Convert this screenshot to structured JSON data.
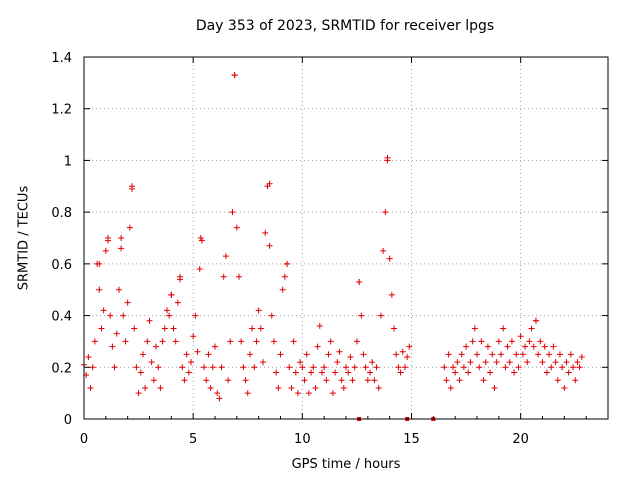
{
  "chart_data": {
    "type": "scatter",
    "title": "Day 353 of 2023, SRMTID for receiver lpgs",
    "xlabel": "GPS time / hours",
    "ylabel": "SRMTID / TECUs",
    "xlim": [
      0,
      24
    ],
    "ylim": [
      0,
      1.4
    ],
    "xticks": [
      0,
      5,
      10,
      15,
      20
    ],
    "yticks": [
      0,
      0.2,
      0.4,
      0.6,
      0.8,
      1,
      1.2,
      1.4
    ],
    "grid": true,
    "marker": "+",
    "color": "#e00000",
    "gaps_hours": [
      [
        14.9,
        15.8
      ],
      [
        15.95,
        16.5
      ]
    ],
    "spikes": [
      {
        "x": 0.7,
        "y": 0.6
      },
      {
        "x": 1.1,
        "y": 0.7
      },
      {
        "x": 1.7,
        "y": 0.7
      },
      {
        "x": 2.2,
        "y": 0.9
      },
      {
        "x": 4.0,
        "y": 0.48
      },
      {
        "x": 4.4,
        "y": 0.55
      },
      {
        "x": 5.35,
        "y": 0.7
      },
      {
        "x": 6.9,
        "y": 1.33
      },
      {
        "x": 8.5,
        "y": 0.91
      },
      {
        "x": 9.3,
        "y": 0.6
      },
      {
        "x": 12.6,
        "y": 0.53
      },
      {
        "x": 13.9,
        "y": 1.01
      },
      {
        "x": 20.7,
        "y": 0.38
      }
    ],
    "zero_points_hours": [
      12.6,
      14.8,
      16.0
    ],
    "points": [
      [
        0.0,
        0.21
      ],
      [
        0.1,
        0.17
      ],
      [
        0.2,
        0.24
      ],
      [
        0.3,
        0.12
      ],
      [
        0.4,
        0.2
      ],
      [
        0.5,
        0.3
      ],
      [
        0.6,
        0.6
      ],
      [
        0.7,
        0.5
      ],
      [
        0.8,
        0.35
      ],
      [
        0.9,
        0.42
      ],
      [
        1.0,
        0.65
      ],
      [
        1.1,
        0.69
      ],
      [
        1.2,
        0.4
      ],
      [
        1.3,
        0.28
      ],
      [
        1.4,
        0.2
      ],
      [
        1.5,
        0.33
      ],
      [
        1.6,
        0.5
      ],
      [
        1.7,
        0.66
      ],
      [
        1.8,
        0.4
      ],
      [
        1.9,
        0.3
      ],
      [
        2.0,
        0.45
      ],
      [
        2.1,
        0.74
      ],
      [
        2.2,
        0.89
      ],
      [
        2.3,
        0.35
      ],
      [
        2.4,
        0.2
      ],
      [
        2.5,
        0.1
      ],
      [
        2.6,
        0.18
      ],
      [
        2.7,
        0.25
      ],
      [
        2.8,
        0.12
      ],
      [
        2.9,
        0.3
      ],
      [
        3.0,
        0.38
      ],
      [
        3.1,
        0.22
      ],
      [
        3.2,
        0.15
      ],
      [
        3.3,
        0.28
      ],
      [
        3.4,
        0.2
      ],
      [
        3.5,
        0.12
      ],
      [
        3.6,
        0.3
      ],
      [
        3.7,
        0.35
      ],
      [
        3.8,
        0.42
      ],
      [
        3.9,
        0.4
      ],
      [
        4.0,
        0.48
      ],
      [
        4.1,
        0.35
      ],
      [
        4.2,
        0.3
      ],
      [
        4.3,
        0.45
      ],
      [
        4.4,
        0.54
      ],
      [
        4.5,
        0.2
      ],
      [
        4.6,
        0.15
      ],
      [
        4.7,
        0.25
      ],
      [
        4.8,
        0.18
      ],
      [
        4.9,
        0.22
      ],
      [
        5.0,
        0.32
      ],
      [
        5.1,
        0.4
      ],
      [
        5.2,
        0.26
      ],
      [
        5.3,
        0.58
      ],
      [
        5.4,
        0.69
      ],
      [
        5.5,
        0.2
      ],
      [
        5.6,
        0.15
      ],
      [
        5.7,
        0.25
      ],
      [
        5.8,
        0.12
      ],
      [
        5.9,
        0.2
      ],
      [
        6.0,
        0.28
      ],
      [
        6.1,
        0.1
      ],
      [
        6.2,
        0.08
      ],
      [
        6.3,
        0.2
      ],
      [
        6.4,
        0.55
      ],
      [
        6.5,
        0.63
      ],
      [
        6.6,
        0.15
      ],
      [
        6.7,
        0.3
      ],
      [
        6.8,
        0.8
      ],
      [
        6.9,
        1.33
      ],
      [
        7.0,
        0.74
      ],
      [
        7.1,
        0.55
      ],
      [
        7.2,
        0.3
      ],
      [
        7.3,
        0.2
      ],
      [
        7.4,
        0.15
      ],
      [
        7.5,
        0.1
      ],
      [
        7.6,
        0.25
      ],
      [
        7.7,
        0.35
      ],
      [
        7.8,
        0.2
      ],
      [
        7.9,
        0.3
      ],
      [
        8.0,
        0.42
      ],
      [
        8.1,
        0.35
      ],
      [
        8.2,
        0.22
      ],
      [
        8.3,
        0.72
      ],
      [
        8.4,
        0.9
      ],
      [
        8.5,
        0.67
      ],
      [
        8.6,
        0.4
      ],
      [
        8.7,
        0.3
      ],
      [
        8.8,
        0.18
      ],
      [
        8.9,
        0.12
      ],
      [
        9.0,
        0.25
      ],
      [
        9.1,
        0.5
      ],
      [
        9.2,
        0.55
      ],
      [
        9.3,
        0.6
      ],
      [
        9.4,
        0.2
      ],
      [
        9.5,
        0.12
      ],
      [
        9.6,
        0.3
      ],
      [
        9.7,
        0.18
      ],
      [
        9.8,
        0.1
      ],
      [
        9.9,
        0.22
      ],
      [
        10.0,
        0.2
      ],
      [
        10.1,
        0.15
      ],
      [
        10.2,
        0.25
      ],
      [
        10.3,
        0.1
      ],
      [
        10.4,
        0.18
      ],
      [
        10.5,
        0.2
      ],
      [
        10.6,
        0.12
      ],
      [
        10.7,
        0.28
      ],
      [
        10.8,
        0.36
      ],
      [
        10.9,
        0.18
      ],
      [
        11.0,
        0.2
      ],
      [
        11.1,
        0.15
      ],
      [
        11.2,
        0.25
      ],
      [
        11.3,
        0.3
      ],
      [
        11.4,
        0.1
      ],
      [
        11.5,
        0.18
      ],
      [
        11.6,
        0.22
      ],
      [
        11.7,
        0.26
      ],
      [
        11.8,
        0.15
      ],
      [
        11.9,
        0.12
      ],
      [
        12.0,
        0.2
      ],
      [
        12.1,
        0.18
      ],
      [
        12.2,
        0.24
      ],
      [
        12.3,
        0.15
      ],
      [
        12.4,
        0.2
      ],
      [
        12.5,
        0.3
      ],
      [
        12.6,
        0.53
      ],
      [
        12.7,
        0.4
      ],
      [
        12.8,
        0.25
      ],
      [
        12.9,
        0.2
      ],
      [
        13.0,
        0.15
      ],
      [
        13.1,
        0.18
      ],
      [
        13.2,
        0.22
      ],
      [
        13.3,
        0.15
      ],
      [
        13.4,
        0.2
      ],
      [
        13.5,
        0.12
      ],
      [
        13.6,
        0.4
      ],
      [
        13.7,
        0.65
      ],
      [
        13.8,
        0.8
      ],
      [
        13.9,
        1.0
      ],
      [
        14.0,
        0.62
      ],
      [
        14.1,
        0.48
      ],
      [
        14.2,
        0.35
      ],
      [
        14.3,
        0.25
      ],
      [
        14.4,
        0.2
      ],
      [
        14.5,
        0.18
      ],
      [
        14.6,
        0.26
      ],
      [
        14.7,
        0.2
      ],
      [
        14.8,
        0.24
      ],
      [
        14.9,
        0.28
      ],
      [
        16.5,
        0.2
      ],
      [
        16.6,
        0.15
      ],
      [
        16.7,
        0.25
      ],
      [
        16.8,
        0.12
      ],
      [
        16.9,
        0.2
      ],
      [
        17.0,
        0.18
      ],
      [
        17.1,
        0.22
      ],
      [
        17.2,
        0.15
      ],
      [
        17.3,
        0.25
      ],
      [
        17.4,
        0.2
      ],
      [
        17.5,
        0.28
      ],
      [
        17.6,
        0.18
      ],
      [
        17.7,
        0.22
      ],
      [
        17.8,
        0.3
      ],
      [
        17.9,
        0.35
      ],
      [
        18.0,
        0.25
      ],
      [
        18.1,
        0.2
      ],
      [
        18.2,
        0.3
      ],
      [
        18.3,
        0.15
      ],
      [
        18.4,
        0.22
      ],
      [
        18.5,
        0.28
      ],
      [
        18.6,
        0.18
      ],
      [
        18.7,
        0.25
      ],
      [
        18.8,
        0.12
      ],
      [
        18.9,
        0.22
      ],
      [
        19.0,
        0.3
      ],
      [
        19.1,
        0.25
      ],
      [
        19.2,
        0.35
      ],
      [
        19.3,
        0.2
      ],
      [
        19.4,
        0.28
      ],
      [
        19.5,
        0.22
      ],
      [
        19.6,
        0.3
      ],
      [
        19.7,
        0.18
      ],
      [
        19.8,
        0.25
      ],
      [
        19.9,
        0.2
      ],
      [
        20.0,
        0.32
      ],
      [
        20.1,
        0.25
      ],
      [
        20.2,
        0.28
      ],
      [
        20.3,
        0.22
      ],
      [
        20.4,
        0.3
      ],
      [
        20.5,
        0.35
      ],
      [
        20.6,
        0.28
      ],
      [
        20.7,
        0.38
      ],
      [
        20.8,
        0.25
      ],
      [
        20.9,
        0.3
      ],
      [
        21.0,
        0.22
      ],
      [
        21.1,
        0.28
      ],
      [
        21.2,
        0.18
      ],
      [
        21.3,
        0.25
      ],
      [
        21.4,
        0.2
      ],
      [
        21.5,
        0.28
      ],
      [
        21.6,
        0.22
      ],
      [
        21.7,
        0.15
      ],
      [
        21.8,
        0.25
      ],
      [
        21.9,
        0.2
      ],
      [
        22.0,
        0.12
      ],
      [
        22.1,
        0.22
      ],
      [
        22.2,
        0.18
      ],
      [
        22.3,
        0.25
      ],
      [
        22.4,
        0.2
      ],
      [
        22.5,
        0.15
      ],
      [
        22.6,
        0.22
      ],
      [
        22.7,
        0.2
      ],
      [
        22.8,
        0.24
      ]
    ]
  }
}
